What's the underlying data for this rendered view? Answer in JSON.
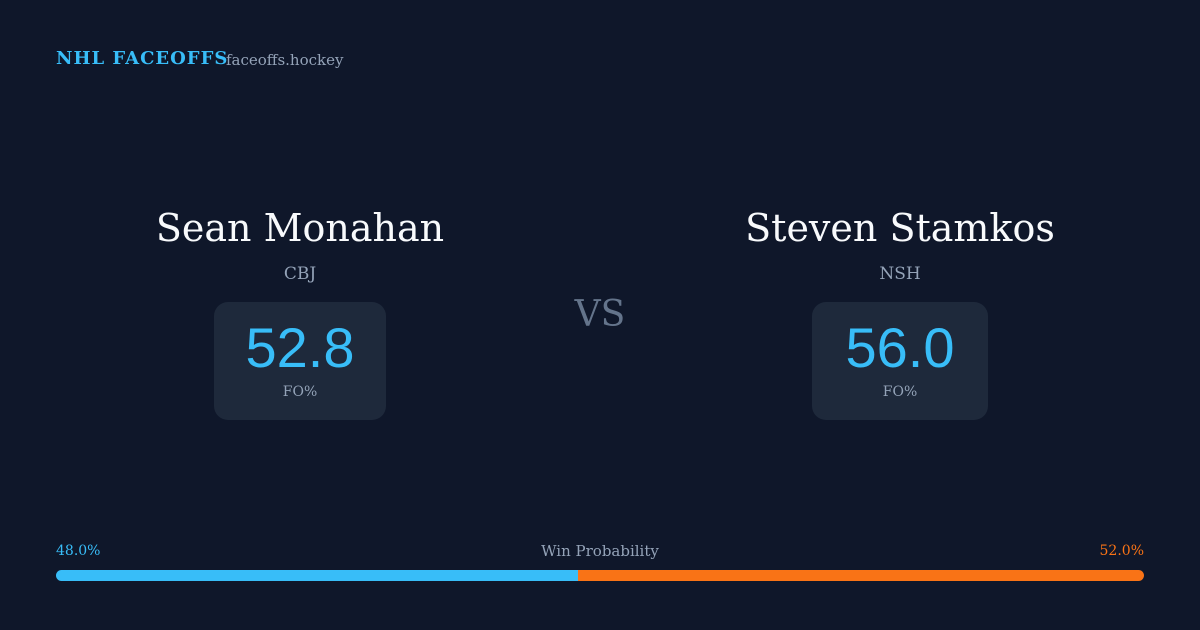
{
  "header": {
    "title": "NHL FACEOFFS",
    "site": "faceoffs.hockey"
  },
  "players": [
    {
      "name": "Sean Monahan",
      "team": "CBJ",
      "stat_value": "52.8",
      "stat_label": "FO%"
    },
    {
      "name": "Steven Stamkos",
      "team": "NSH",
      "stat_value": "56.0",
      "stat_label": "FO%"
    }
  ],
  "versus": "VS",
  "win_probability": {
    "label": "Win Probability",
    "left": {
      "value": 48.0,
      "label": "48.0%",
      "color": "#38bdf8"
    },
    "right": {
      "value": 52.0,
      "label": "52.0%",
      "color": "#f97316"
    }
  }
}
